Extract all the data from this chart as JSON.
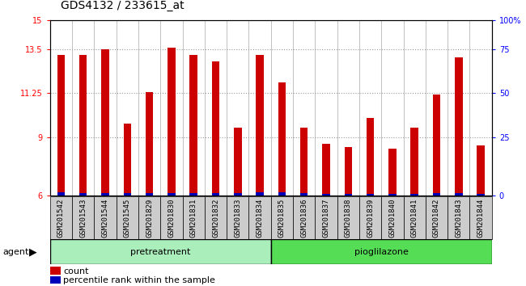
{
  "title": "GDS4132 / 233615_at",
  "categories": [
    "GSM201542",
    "GSM201543",
    "GSM201544",
    "GSM201545",
    "GSM201829",
    "GSM201830",
    "GSM201831",
    "GSM201832",
    "GSM201833",
    "GSM201834",
    "GSM201835",
    "GSM201836",
    "GSM201837",
    "GSM201838",
    "GSM201839",
    "GSM201840",
    "GSM201841",
    "GSM201842",
    "GSM201843",
    "GSM201844"
  ],
  "count_values": [
    13.2,
    13.2,
    13.5,
    9.7,
    11.3,
    13.6,
    13.2,
    12.9,
    9.5,
    13.2,
    11.8,
    9.5,
    8.65,
    8.5,
    10.0,
    8.4,
    9.5,
    11.2,
    13.1,
    8.6
  ],
  "percentile_values": [
    0.18,
    0.16,
    0.14,
    0.13,
    0.16,
    0.15,
    0.13,
    0.13,
    0.13,
    0.17,
    0.18,
    0.13,
    0.12,
    0.12,
    0.12,
    0.12,
    0.12,
    0.15,
    0.16,
    0.12
  ],
  "ymin": 6,
  "ymax": 15,
  "yticks": [
    6,
    9,
    11.25,
    13.5,
    15
  ],
  "ytick_labels": [
    "6",
    "9",
    "11.25",
    "13.5",
    "15"
  ],
  "right_ytick_labels": [
    "0",
    "25",
    "50",
    "75",
    "100%"
  ],
  "group1_label": "pretreatment",
  "group1_count": 10,
  "group2_label": "pioglilazone",
  "group2_count": 10,
  "agent_label": "agent",
  "bar_color_red": "#cc0000",
  "bar_color_blue": "#0000bb",
  "group1_color": "#aaeebb",
  "group2_color": "#55dd55",
  "cell_bg_color": "#cccccc",
  "plot_bg": "#ffffff",
  "dotted_line_color": "#999999",
  "title_fontsize": 10,
  "tick_fontsize": 7,
  "label_fontsize": 6.5,
  "legend_fontsize": 8,
  "bar_width": 0.35
}
